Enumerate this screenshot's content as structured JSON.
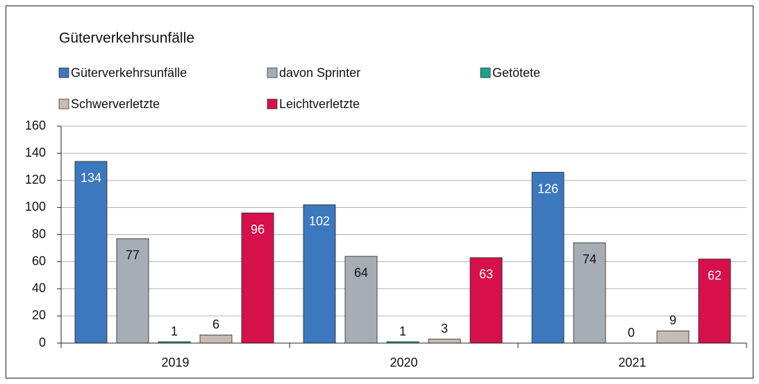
{
  "chart_data": {
    "type": "bar",
    "title": "Güterverkehrsunfälle",
    "categories": [
      "2019",
      "2020",
      "2021"
    ],
    "series": [
      {
        "name": "Güterverkehrsunfälle",
        "color": "#3c78be",
        "values": [
          134,
          102,
          126
        ]
      },
      {
        "name": "davon Sprinter",
        "color": "#a6adb4",
        "values": [
          77,
          64,
          74
        ]
      },
      {
        "name": "Getötete",
        "color": "#1aa38f",
        "values": [
          1,
          1,
          0
        ]
      },
      {
        "name": "Schwerverletzte",
        "color": "#c6bcb3",
        "values": [
          6,
          3,
          9
        ]
      },
      {
        "name": "Leichtverletzte",
        "color": "#d6104a",
        "values": [
          96,
          63,
          62
        ]
      }
    ],
    "ylim": [
      0,
      160
    ],
    "yticks": [
      0,
      20,
      40,
      60,
      80,
      100,
      120,
      140,
      160
    ],
    "grid": true
  }
}
